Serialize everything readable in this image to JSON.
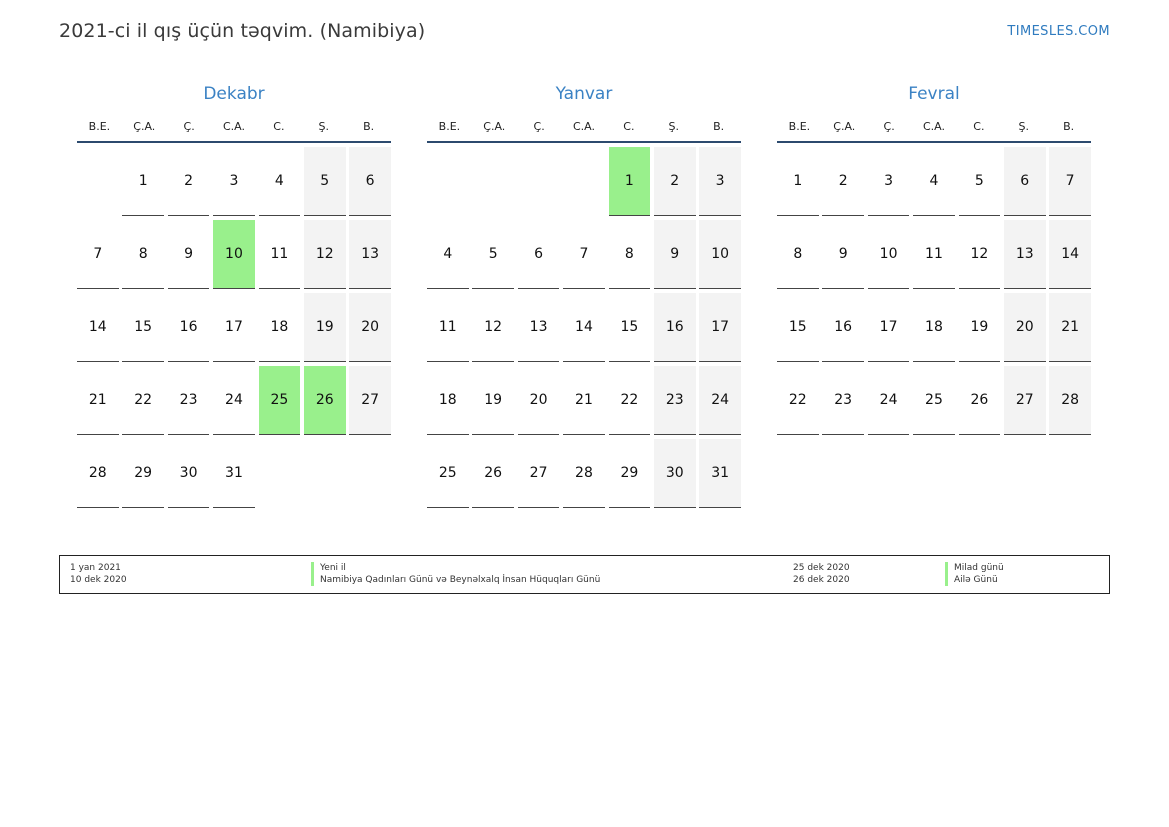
{
  "header": {
    "title": "2021-ci il qış üçün təqvim. (Namibiya)",
    "brand": "TIMESLES.COM"
  },
  "weekdays": [
    "B.E.",
    "Ç.A.",
    "Ç.",
    "C.A.",
    "C.",
    "Ş.",
    "B."
  ],
  "months": [
    {
      "name": "Dekabr",
      "start_offset": 1,
      "days": 31,
      "holidays": [
        10,
        25,
        26
      ]
    },
    {
      "name": "Yanvar",
      "start_offset": 4,
      "days": 31,
      "holidays": [
        1
      ]
    },
    {
      "name": "Fevral",
      "start_offset": 0,
      "days": 28,
      "holidays": []
    }
  ],
  "colors": {
    "holiday": "#99f08c",
    "weekend": "#f3f3f3",
    "month_name": "#3b82c4",
    "brand": "#2f7bbf"
  },
  "legend": {
    "left": [
      {
        "date": "1 yan 2021",
        "name": "Yeni il"
      },
      {
        "date": "10 dek 2020",
        "name": "Namibiya Qadınları Günü və Beynəlxalq İnsan Hüquqları Günü"
      }
    ],
    "right": [
      {
        "date": "25 dek 2020",
        "name": "Milad günü"
      },
      {
        "date": "26 dek 2020",
        "name": "Ailə Günü"
      }
    ]
  }
}
